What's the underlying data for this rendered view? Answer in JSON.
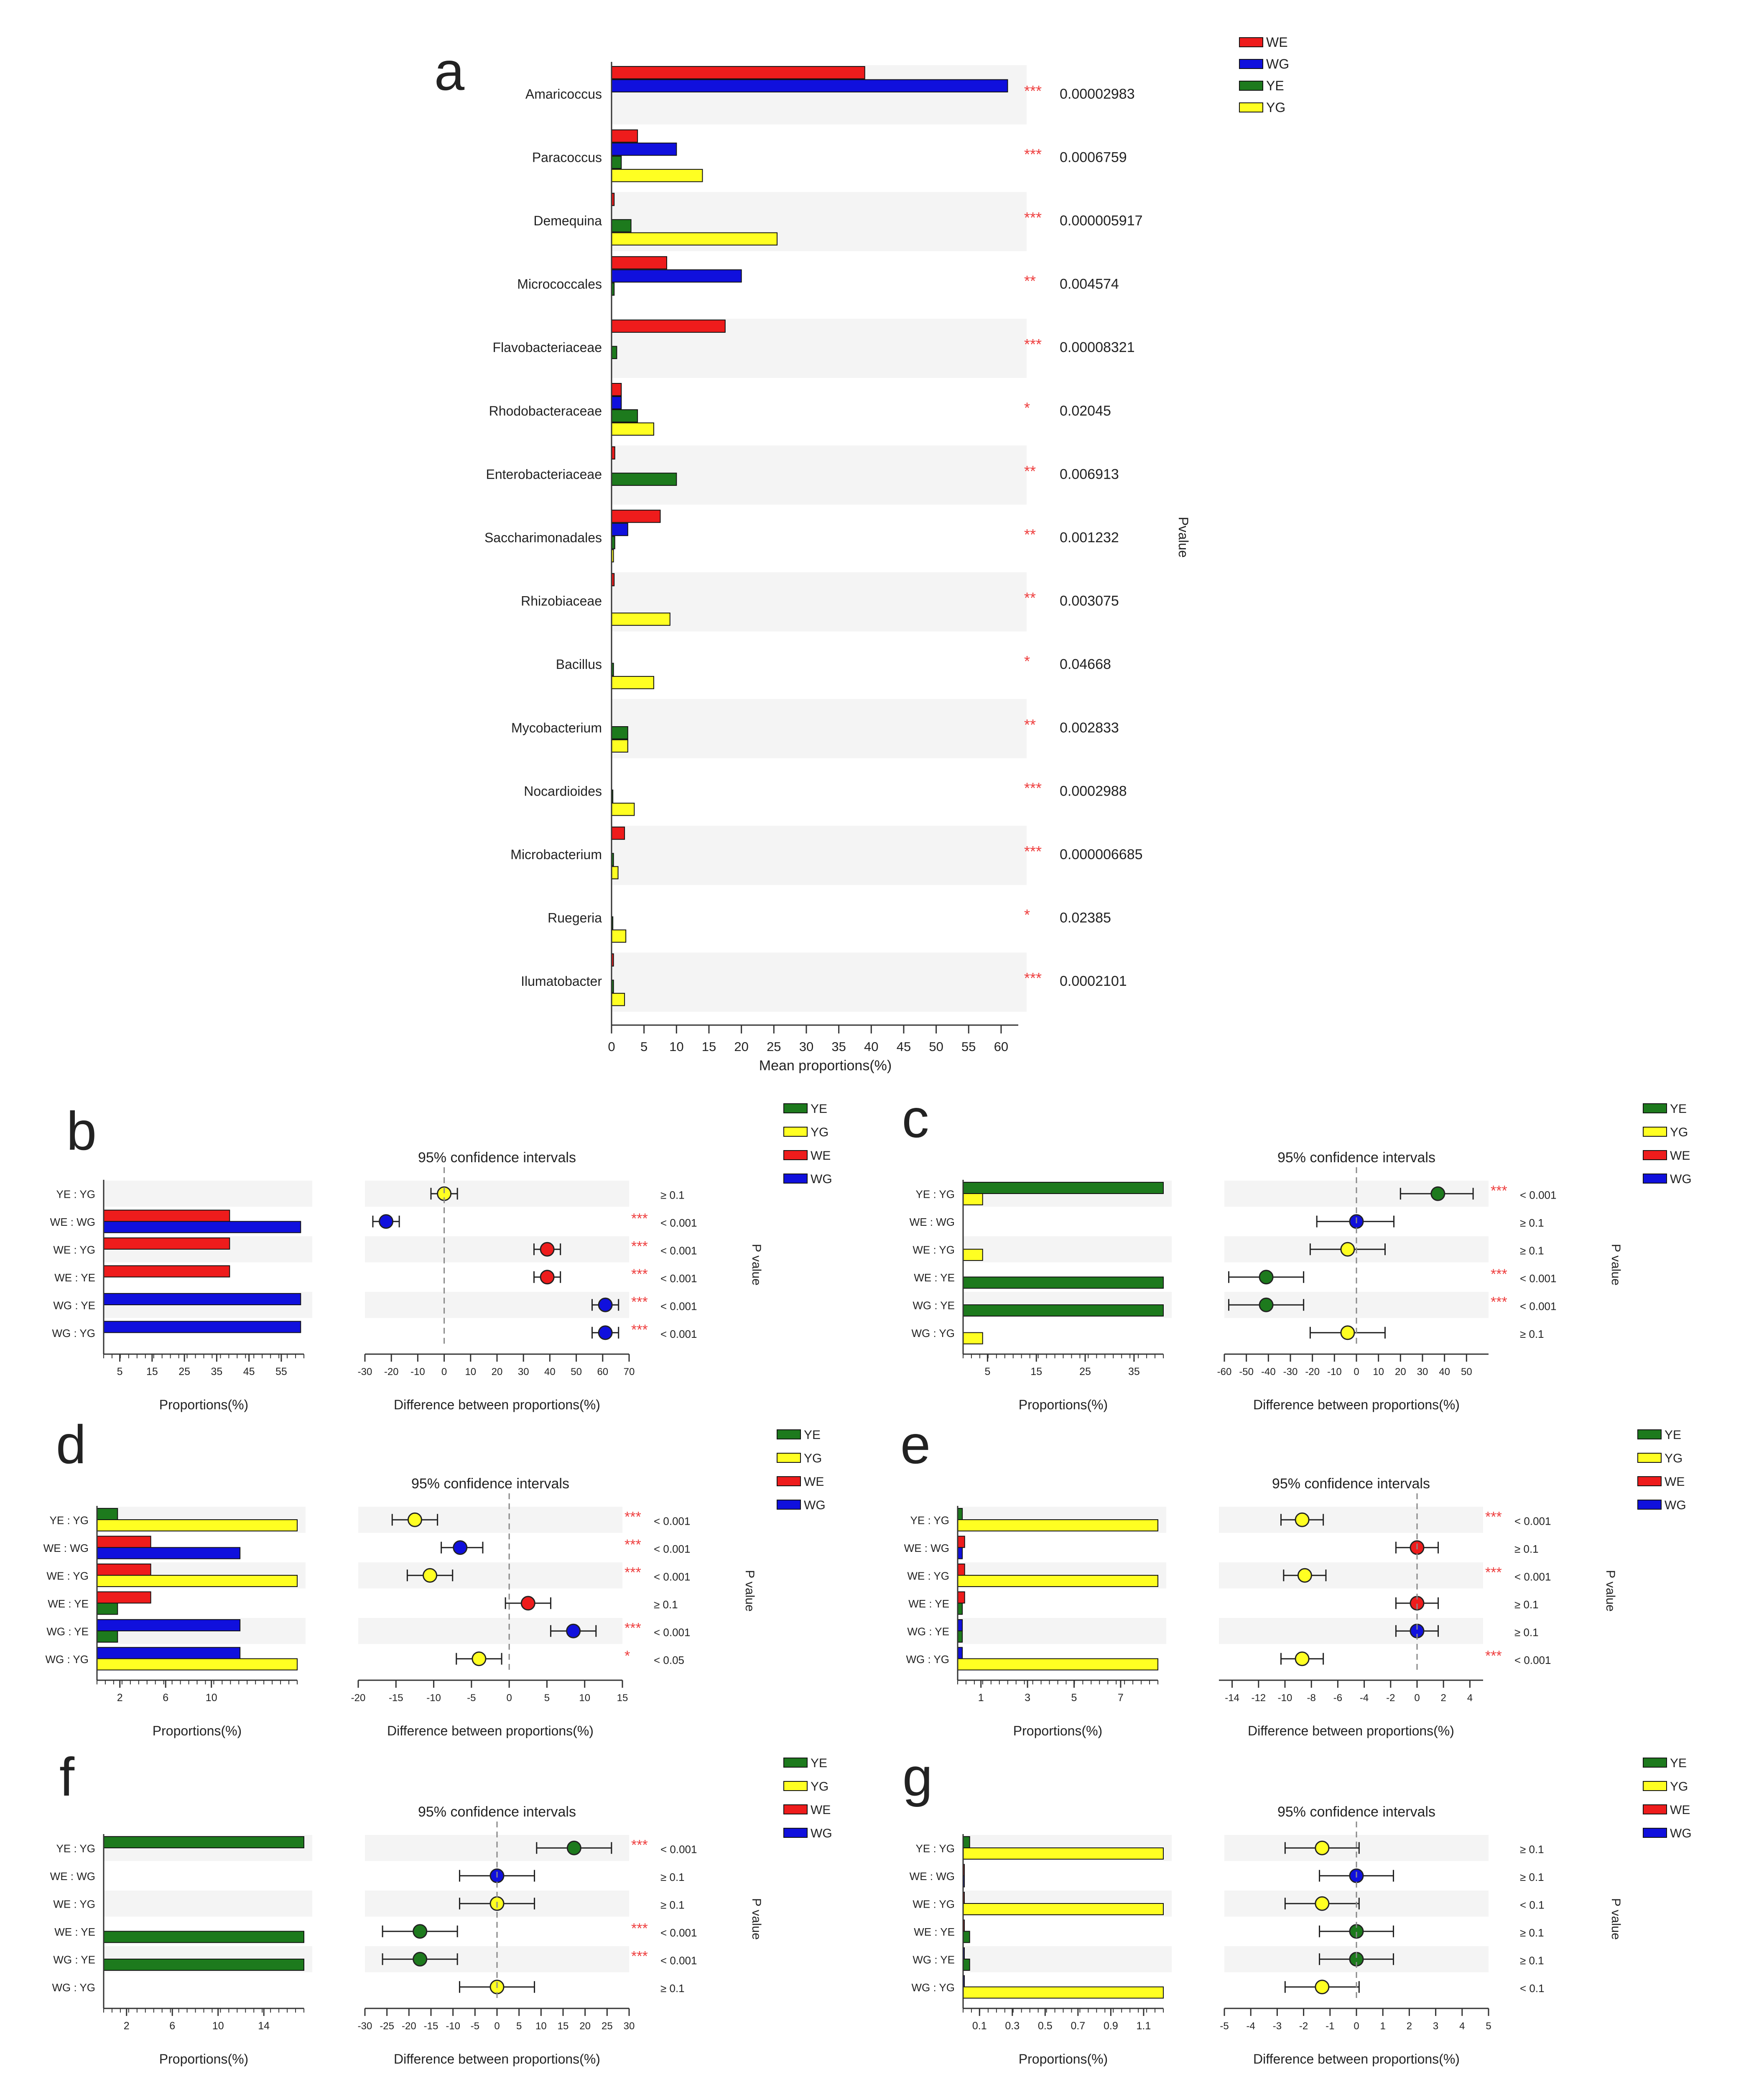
{
  "figure": {
    "colors": {
      "WE": "#ee1c1c",
      "WG": "#1010dd",
      "YE": "#1d7a1d",
      "YG": "#ffff22",
      "stripe": "#f4f4f4",
      "star": "#ee3c3c",
      "axis": "#333333"
    },
    "ci_title": "95% confidence intervals",
    "pvalue_label": "P value"
  },
  "chart_data": [
    {
      "panel": "a",
      "type": "bar",
      "orientation": "horizontal",
      "legend": [
        "WE",
        "WG",
        "YE",
        "YG"
      ],
      "xlabel": "Mean proportions(%)",
      "xlim": [
        0,
        62
      ],
      "xticks": [
        0,
        5,
        10,
        15,
        20,
        25,
        30,
        35,
        40,
        45,
        50,
        55,
        60
      ],
      "ylabel_right": "Pvalue",
      "rows": [
        {
          "label": "Amaricoccus",
          "sig": "***",
          "p": "0.00002983",
          "values": [
            39,
            61,
            0,
            0
          ]
        },
        {
          "label": "Paracoccus",
          "sig": "***",
          "p": "0.0006759",
          "values": [
            4,
            10,
            1.5,
            14
          ]
        },
        {
          "label": "Demequina",
          "sig": "***",
          "p": "0.000005917",
          "values": [
            0.4,
            0,
            3,
            25.5
          ]
        },
        {
          "label": "Micrococcales",
          "sig": "**",
          "p": "0.004574",
          "values": [
            8.5,
            20,
            0.4,
            0
          ]
        },
        {
          "label": "Flavobacteriaceae",
          "sig": "***",
          "p": "0.00008321",
          "values": [
            17.5,
            0,
            0.8,
            0
          ]
        },
        {
          "label": "Rhodobacteraceae",
          "sig": "*",
          "p": "0.02045",
          "values": [
            1.5,
            1.5,
            4,
            6.5
          ]
        },
        {
          "label": "Enterobacteriaceae",
          "sig": "**",
          "p": "0.006913",
          "values": [
            0.5,
            0,
            10,
            0
          ]
        },
        {
          "label": "Saccharimonadales",
          "sig": "**",
          "p": "0.001232",
          "values": [
            7.5,
            2.5,
            0.5,
            0.3
          ]
        },
        {
          "label": "Rhizobiaceae",
          "sig": "**",
          "p": "0.003075",
          "values": [
            0.4,
            0,
            0,
            9
          ]
        },
        {
          "label": "Bacillus",
          "sig": "*",
          "p": "0.04668",
          "values": [
            0,
            0,
            0.3,
            6.5
          ]
        },
        {
          "label": "Mycobacterium",
          "sig": "**",
          "p": "0.002833",
          "values": [
            0,
            0,
            2.5,
            2.5
          ]
        },
        {
          "label": "Nocardioides",
          "sig": "***",
          "p": "0.0002988",
          "values": [
            0,
            0,
            0.2,
            3.5
          ]
        },
        {
          "label": "Microbacterium",
          "sig": "***",
          "p": "0.000006685",
          "values": [
            2,
            0,
            0.3,
            1
          ]
        },
        {
          "label": "Ruegeria",
          "sig": "*",
          "p": "0.02385",
          "values": [
            0,
            0,
            0.2,
            2.2
          ]
        },
        {
          "label": "Ilumatobacter",
          "sig": "***",
          "p": "0.0002101",
          "values": [
            0.3,
            0,
            0.3,
            2
          ]
        }
      ]
    },
    {
      "panel": "b",
      "type": "bar_ci",
      "legend": [
        "YE",
        "YG",
        "WE",
        "WG"
      ],
      "bar_xlim": [
        0,
        62
      ],
      "bar_xticks": [
        "5",
        "15",
        "25",
        "35",
        "45",
        "55"
      ],
      "bar_tickvals": [
        5,
        15,
        25,
        35,
        45,
        55
      ],
      "bar_xlabel": "Proportions(%)",
      "ci_xlim": [
        -30,
        70
      ],
      "ci_xticks": [
        "-30",
        "-20",
        "-10",
        "0",
        "10",
        "20",
        "30",
        "40",
        "50",
        "60",
        "70"
      ],
      "ci_tickvals": [
        -30,
        -20,
        -10,
        0,
        10,
        20,
        30,
        40,
        50,
        60,
        70
      ],
      "ci_xlabel": "Difference between proportions(%)",
      "comparisons": [
        {
          "label": "YE : YG",
          "g1": "YE",
          "g2": "YG",
          "v1": 0,
          "v2": 0,
          "mean": 0,
          "lo": -5,
          "hi": 5,
          "dot": "YG",
          "sig": "",
          "p": "≥ 0.1"
        },
        {
          "label": "WE : WG",
          "g1": "WE",
          "g2": "WG",
          "v1": 39,
          "v2": 61,
          "mean": -22,
          "lo": -27,
          "hi": -17,
          "dot": "WG",
          "sig": "***",
          "p": "< 0.001"
        },
        {
          "label": "WE : YG",
          "g1": "WE",
          "g2": "YG",
          "v1": 39,
          "v2": 0,
          "mean": 39,
          "lo": 34,
          "hi": 44,
          "dot": "WE",
          "sig": "***",
          "p": "< 0.001"
        },
        {
          "label": "WE : YE",
          "g1": "WE",
          "g2": "YE",
          "v1": 39,
          "v2": 0,
          "mean": 39,
          "lo": 34,
          "hi": 44,
          "dot": "WE",
          "sig": "***",
          "p": "< 0.001"
        },
        {
          "label": "WG : YE",
          "g1": "WG",
          "g2": "YE",
          "v1": 61,
          "v2": 0,
          "mean": 61,
          "lo": 56,
          "hi": 66,
          "dot": "WG",
          "sig": "***",
          "p": "< 0.001"
        },
        {
          "label": "WG : YG",
          "g1": "WG",
          "g2": "YG",
          "v1": 61,
          "v2": 0,
          "mean": 61,
          "lo": 56,
          "hi": 66,
          "dot": "WG",
          "sig": "***",
          "p": "< 0.001"
        }
      ]
    },
    {
      "panel": "c",
      "type": "bar_ci",
      "legend": [
        "YE",
        "YG",
        "WE",
        "WG"
      ],
      "bar_xlim": [
        0,
        41
      ],
      "bar_xticks": [
        "5",
        "15",
        "25",
        "35"
      ],
      "bar_tickvals": [
        5,
        15,
        25,
        35
      ],
      "bar_xlabel": "Proportions(%)",
      "ci_xlim": [
        -60,
        60
      ],
      "ci_xticks": [
        "-60",
        "-50",
        "-40",
        "-30",
        "-20",
        "-10",
        "0",
        "10",
        "20",
        "30",
        "40",
        "50"
      ],
      "ci_tickvals": [
        -60,
        -50,
        -40,
        -30,
        -20,
        -10,
        0,
        10,
        20,
        30,
        40,
        50
      ],
      "ci_xlabel": "Difference between proportions(%)",
      "comparisons": [
        {
          "label": "YE : YG",
          "g1": "YE",
          "g2": "YG",
          "v1": 41,
          "v2": 4,
          "mean": 37,
          "lo": 20,
          "hi": 53,
          "dot": "YE",
          "sig": "***",
          "p": "< 0.001"
        },
        {
          "label": "WE : WG",
          "g1": "WE",
          "g2": "WG",
          "v1": 0,
          "v2": 0,
          "mean": 0,
          "lo": -18,
          "hi": 17,
          "dot": "WG",
          "sig": "",
          "p": "≥ 0.1"
        },
        {
          "label": "WE : YG",
          "g1": "WE",
          "g2": "YG",
          "v1": 0,
          "v2": 4,
          "mean": -4,
          "lo": -21,
          "hi": 13,
          "dot": "YG",
          "sig": "",
          "p": "≥ 0.1"
        },
        {
          "label": "WE : YE",
          "g1": "WE",
          "g2": "YE",
          "v1": 0,
          "v2": 41,
          "mean": -41,
          "lo": -58,
          "hi": -24,
          "dot": "YE",
          "sig": "***",
          "p": "< 0.001"
        },
        {
          "label": "WG : YE",
          "g1": "WG",
          "g2": "YE",
          "v1": 0,
          "v2": 41,
          "mean": -41,
          "lo": -58,
          "hi": -24,
          "dot": "YE",
          "sig": "***",
          "p": "< 0.001"
        },
        {
          "label": "WG : YG",
          "g1": "WG",
          "g2": "YG",
          "v1": 0,
          "v2": 4,
          "mean": -4,
          "lo": -21,
          "hi": 13,
          "dot": "YG",
          "sig": "",
          "p": "≥ 0.1"
        }
      ]
    },
    {
      "panel": "d",
      "type": "bar_ci",
      "legend": [
        "YE",
        "YG",
        "WE",
        "WG"
      ],
      "bar_xlim": [
        0,
        17.5
      ],
      "bar_xticks": [
        "2",
        "6",
        "10"
      ],
      "bar_tickvals": [
        2,
        6,
        10
      ],
      "bar_xlabel": "Proportions(%)",
      "ci_xlim": [
        -20,
        15
      ],
      "ci_xticks": [
        "-20",
        "-15",
        "-10",
        "-5",
        "0",
        "5",
        "10",
        "15"
      ],
      "ci_tickvals": [
        -20,
        -15,
        -10,
        -5,
        0,
        5,
        10,
        15
      ],
      "ci_xlabel": "Difference between proportions(%)",
      "comparisons": [
        {
          "label": "YE : YG",
          "g1": "YE",
          "g2": "YG",
          "v1": 1.8,
          "v2": 17.5,
          "mean": -12.5,
          "lo": -15.5,
          "hi": -9.5,
          "dot": "YG",
          "sig": "***",
          "p": "< 0.001"
        },
        {
          "label": "WE : WG",
          "g1": "WE",
          "g2": "WG",
          "v1": 4.7,
          "v2": 12.5,
          "mean": -6.5,
          "lo": -9,
          "hi": -3.5,
          "dot": "WG",
          "sig": "***",
          "p": "< 0.001"
        },
        {
          "label": "WE : YG",
          "g1": "WE",
          "g2": "YG",
          "v1": 4.7,
          "v2": 17.5,
          "mean": -10.5,
          "lo": -13.5,
          "hi": -7.5,
          "dot": "YG",
          "sig": "***",
          "p": "< 0.001"
        },
        {
          "label": "WE : YE",
          "g1": "WE",
          "g2": "YE",
          "v1": 4.7,
          "v2": 1.8,
          "mean": 2.5,
          "lo": -0.5,
          "hi": 5.5,
          "dot": "WE",
          "sig": "",
          "p": "≥ 0.1"
        },
        {
          "label": "WG : YE",
          "g1": "WG",
          "g2": "YE",
          "v1": 12.5,
          "v2": 1.8,
          "mean": 8.5,
          "lo": 5.5,
          "hi": 11.5,
          "dot": "WG",
          "sig": "***",
          "p": "< 0.001"
        },
        {
          "label": "WG : YG",
          "g1": "WG",
          "g2": "YG",
          "v1": 12.5,
          "v2": 17.5,
          "mean": -4,
          "lo": -7,
          "hi": -1,
          "dot": "YG",
          "sig": "*",
          "p": "< 0.05"
        }
      ]
    },
    {
      "panel": "e",
      "type": "bar_ci",
      "legend": [
        "YE",
        "YG",
        "WE",
        "WG"
      ],
      "bar_xlim": [
        0,
        8.6
      ],
      "bar_xticks": [
        "1",
        "3",
        "5",
        "7"
      ],
      "bar_tickvals": [
        1,
        3,
        5,
        7
      ],
      "bar_xlabel": "Proportions(%)",
      "ci_xlim": [
        -15,
        5
      ],
      "ci_xticks": [
        "-14",
        "-12",
        "-10",
        "-8",
        "-6",
        "-4",
        "-2",
        "0",
        "2",
        "4"
      ],
      "ci_tickvals": [
        -14,
        -12,
        -10,
        -8,
        -6,
        -4,
        -2,
        0,
        2,
        4
      ],
      "ci_xlabel": "Difference between proportions(%)",
      "comparisons": [
        {
          "label": "YE : YG",
          "g1": "YE",
          "g2": "YG",
          "v1": 0.2,
          "v2": 8.6,
          "mean": -8.7,
          "lo": -10.3,
          "hi": -7.1,
          "dot": "YG",
          "sig": "***",
          "p": "< 0.001"
        },
        {
          "label": "WE : WG",
          "g1": "WE",
          "g2": "WG",
          "v1": 0.3,
          "v2": 0.2,
          "mean": 0,
          "lo": -1.6,
          "hi": 1.6,
          "dot": "WE",
          "sig": "",
          "p": "≥ 0.1"
        },
        {
          "label": "WE : YG",
          "g1": "WE",
          "g2": "YG",
          "v1": 0.3,
          "v2": 8.6,
          "mean": -8.5,
          "lo": -10.1,
          "hi": -6.9,
          "dot": "YG",
          "sig": "***",
          "p": "< 0.001"
        },
        {
          "label": "WE : YE",
          "g1": "WE",
          "g2": "YE",
          "v1": 0.3,
          "v2": 0.2,
          "mean": 0,
          "lo": -1.6,
          "hi": 1.6,
          "dot": "WE",
          "sig": "",
          "p": "≥ 0.1"
        },
        {
          "label": "WG : YE",
          "g1": "WG",
          "g2": "YE",
          "v1": 0.2,
          "v2": 0.2,
          "mean": 0,
          "lo": -1.6,
          "hi": 1.6,
          "dot": "WG",
          "sig": "",
          "p": "≥ 0.1"
        },
        {
          "label": "WG : YG",
          "g1": "WG",
          "g2": "YG",
          "v1": 0.2,
          "v2": 8.6,
          "mean": -8.7,
          "lo": -10.3,
          "hi": -7.1,
          "dot": "YG",
          "sig": "***",
          "p": "< 0.001"
        }
      ]
    },
    {
      "panel": "f",
      "type": "bar_ci",
      "legend": [
        "YE",
        "YG",
        "WE",
        "WG"
      ],
      "bar_xlim": [
        0,
        17.5
      ],
      "bar_xticks": [
        "2",
        "6",
        "10",
        "14"
      ],
      "bar_tickvals": [
        2,
        6,
        10,
        14
      ],
      "bar_xlabel": "Proportions(%)",
      "ci_xlim": [
        -30,
        30
      ],
      "ci_xticks": [
        "-30",
        "-25",
        "-20",
        "-15",
        "-10",
        "-5",
        "0",
        "5",
        "10",
        "15",
        "20",
        "25",
        "30"
      ],
      "ci_tickvals": [
        -30,
        -25,
        -20,
        -15,
        -10,
        -5,
        0,
        5,
        10,
        15,
        20,
        25,
        30
      ],
      "ci_xlabel": "Difference between proportions(%)",
      "comparisons": [
        {
          "label": "YE : YG",
          "g1": "YE",
          "g2": "YG",
          "v1": 17.5,
          "v2": 0,
          "mean": 17.5,
          "lo": 9,
          "hi": 26,
          "dot": "YE",
          "sig": "***",
          "p": "< 0.001"
        },
        {
          "label": "WE : WG",
          "g1": "WE",
          "g2": "WG",
          "v1": 0,
          "v2": 0,
          "mean": 0,
          "lo": -8.5,
          "hi": 8.5,
          "dot": "WG",
          "sig": "",
          "p": "≥ 0.1"
        },
        {
          "label": "WE : YG",
          "g1": "WE",
          "g2": "YG",
          "v1": 0,
          "v2": 0,
          "mean": 0,
          "lo": -8.5,
          "hi": 8.5,
          "dot": "YG",
          "sig": "",
          "p": "≥ 0.1"
        },
        {
          "label": "WE : YE",
          "g1": "WE",
          "g2": "YE",
          "v1": 0,
          "v2": 17.5,
          "mean": -17.5,
          "lo": -26,
          "hi": -9,
          "dot": "YE",
          "sig": "***",
          "p": "< 0.001"
        },
        {
          "label": "WG : YE",
          "g1": "WG",
          "g2": "YE",
          "v1": 0,
          "v2": 17.5,
          "mean": -17.5,
          "lo": -26,
          "hi": -9,
          "dot": "YE",
          "sig": "***",
          "p": "< 0.001"
        },
        {
          "label": "WG : YG",
          "g1": "WG",
          "g2": "YG",
          "v1": 0,
          "v2": 0,
          "mean": 0,
          "lo": -8.5,
          "hi": 8.5,
          "dot": "YG",
          "sig": "",
          "p": "≥ 0.1"
        }
      ]
    },
    {
      "panel": "g",
      "type": "bar_ci",
      "legend": [
        "YE",
        "YG",
        "WE",
        "WG"
      ],
      "bar_xlim": [
        0,
        1.22
      ],
      "bar_xticks": [
        "0.1",
        "0.3",
        "0.5",
        "0.7",
        "0.9",
        "1.1"
      ],
      "bar_tickvals": [
        0.1,
        0.3,
        0.5,
        0.7,
        0.9,
        1.1
      ],
      "bar_xlabel": "Proportions(%)",
      "ci_xlim": [
        -5,
        5
      ],
      "ci_xticks": [
        "-5",
        "-4",
        "-3",
        "-2",
        "-1",
        "0",
        "1",
        "2",
        "3",
        "4",
        "5"
      ],
      "ci_tickvals": [
        -5,
        -4,
        -3,
        -2,
        -1,
        0,
        1,
        2,
        3,
        4,
        5
      ],
      "ci_xlabel": "Difference between proportions(%)",
      "comparisons": [
        {
          "label": "YE : YG",
          "g1": "YE",
          "g2": "YG",
          "v1": 0.04,
          "v2": 1.22,
          "mean": -1.3,
          "lo": -2.7,
          "hi": 0.1,
          "dot": "YG",
          "sig": "",
          "p": "≥ 0.1"
        },
        {
          "label": "WE : WG",
          "g1": "WE",
          "g2": "WG",
          "v1": 0.005,
          "v2": 0.005,
          "mean": 0,
          "lo": -1.4,
          "hi": 1.4,
          "dot": "WG",
          "sig": "",
          "p": "≥ 0.1"
        },
        {
          "label": "WE : YG",
          "g1": "WE",
          "g2": "YG",
          "v1": 0.005,
          "v2": 1.22,
          "mean": -1.3,
          "lo": -2.7,
          "hi": 0.1,
          "dot": "YG",
          "sig": "",
          "p": "< 0.1"
        },
        {
          "label": "WE : YE",
          "g1": "WE",
          "g2": "YE",
          "v1": 0.005,
          "v2": 0.04,
          "mean": 0,
          "lo": -1.4,
          "hi": 1.4,
          "dot": "YE",
          "sig": "",
          "p": "≥ 0.1"
        },
        {
          "label": "WG : YE",
          "g1": "WG",
          "g2": "YE",
          "v1": 0.005,
          "v2": 0.04,
          "mean": 0,
          "lo": -1.4,
          "hi": 1.4,
          "dot": "YE",
          "sig": "",
          "p": "≥ 0.1"
        },
        {
          "label": "WG : YG",
          "g1": "WG",
          "g2": "YG",
          "v1": 0.005,
          "v2": 1.22,
          "mean": -1.3,
          "lo": -2.7,
          "hi": 0.1,
          "dot": "YG",
          "sig": "",
          "p": "< 0.1"
        }
      ]
    }
  ]
}
